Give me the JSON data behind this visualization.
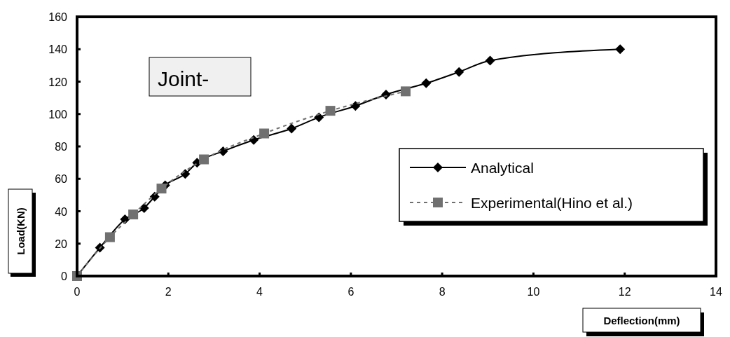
{
  "chart_data": {
    "type": "line",
    "title": "Joint-",
    "xlabel": "Deflection(mm)",
    "ylabel": "Load(KN)",
    "xlim": [
      0,
      14
    ],
    "xticks": [
      0,
      2,
      4,
      6,
      8,
      10,
      12,
      14
    ],
    "ylim": [
      0,
      160
    ],
    "yticks": [
      0,
      20,
      40,
      60,
      80,
      100,
      120,
      140,
      160
    ],
    "grid": false,
    "legend": "right",
    "series": [
      {
        "name": "Analytical",
        "color": "#000000",
        "marker": "diamond",
        "line_style": "solid",
        "x": [
          0,
          0.5,
          1.05,
          1.47,
          1.7,
          1.93,
          2.37,
          2.63,
          3.2,
          3.87,
          4.7,
          5.3,
          6.1,
          6.77,
          7.65,
          8.37,
          9.05,
          11.9
        ],
        "values": [
          0,
          17.5,
          35,
          42,
          49,
          56,
          63,
          70,
          77,
          84,
          91,
          98,
          105,
          112,
          119,
          126,
          133,
          140
        ]
      },
      {
        "name": "Experimental(Hino et al.)",
        "color": "#707070",
        "marker": "square",
        "line_style": "dashed",
        "x": [
          0,
          0.72,
          1.23,
          1.85,
          2.78,
          4.1,
          5.55,
          7.2
        ],
        "values": [
          0,
          24,
          38,
          54,
          72,
          88,
          102,
          114
        ]
      }
    ]
  }
}
